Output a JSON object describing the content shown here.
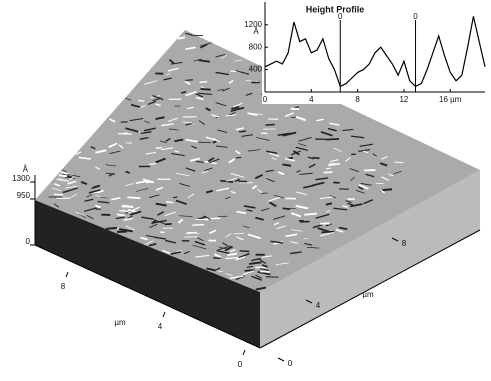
{
  "chart_data": [
    {
      "type": "line",
      "title": "Height Profile",
      "y_label": "Å",
      "x": [
        0,
        1,
        1.5,
        2,
        2.5,
        3,
        3.5,
        4,
        4.5,
        5,
        5.5,
        6,
        6.5,
        7,
        7.5,
        8,
        8.5,
        9,
        9.5,
        10,
        10.5,
        11,
        11.5,
        12,
        12.5,
        13,
        13.5,
        14,
        14.5,
        15,
        15.5,
        16,
        16.5,
        17,
        17.5,
        18,
        18.5,
        19
      ],
      "values": [
        450,
        550,
        500,
        700,
        1250,
        900,
        950,
        700,
        750,
        950,
        600,
        400,
        100,
        150,
        250,
        350,
        400,
        500,
        700,
        800,
        650,
        500,
        300,
        550,
        200,
        100,
        150,
        400,
        700,
        1000,
        650,
        350,
        200,
        300,
        800,
        1350,
        900,
        450
      ],
      "color": "#000000",
      "xlim": [
        0,
        19
      ],
      "ylim": [
        0,
        1500
      ],
      "xticks": [
        0,
        4,
        8,
        12,
        {
          "value": 16,
          "label": "16 µm"
        }
      ],
      "yticks": [
        400,
        800,
        1200
      ],
      "markers": [
        {
          "x": 6.5,
          "label": "0"
        },
        {
          "x": 13,
          "label": "0"
        }
      ]
    },
    {
      "type": "surface",
      "z_label": "Å",
      "zticks": [
        0,
        950,
        1300
      ],
      "x_axis": {
        "label": "µm",
        "ticks": [
          8,
          4,
          0
        ]
      },
      "y_axis": {
        "label": "µm",
        "ticks": [
          0,
          4,
          8
        ]
      }
    }
  ]
}
